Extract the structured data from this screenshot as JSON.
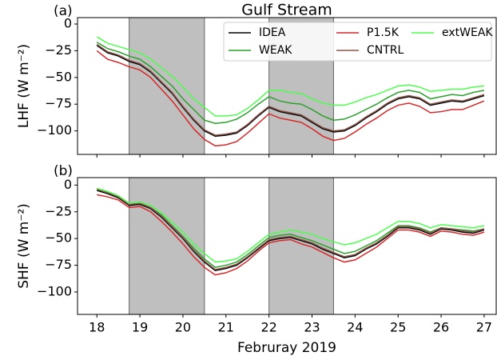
{
  "chart_data": [
    {
      "type": "line",
      "title": "Gulf Stream",
      "panel_label": "(a)",
      "ylabel": "LHF (W m⁻²)",
      "x": [
        18,
        18.25,
        18.5,
        18.75,
        19,
        19.25,
        19.5,
        19.75,
        20,
        20.25,
        20.5,
        20.75,
        21,
        21.25,
        21.5,
        21.75,
        22,
        22.25,
        22.5,
        22.75,
        23,
        23.25,
        23.5,
        23.75,
        24,
        24.25,
        24.5,
        24.75,
        25,
        25.25,
        25.5,
        25.75,
        26,
        26.25,
        26.5,
        26.75,
        27
      ],
      "xlim": [
        17.55,
        27.28
      ],
      "xticks": [
        18,
        19,
        20,
        21,
        22,
        23,
        24,
        25,
        26,
        27
      ],
      "ylim": [
        -122,
        6
      ],
      "yticks": [
        0,
        {
          "value": -25,
          "label": "−25"
        },
        {
          "value": -50,
          "label": "−50"
        },
        {
          "value": -75,
          "label": "−75"
        },
        {
          "value": -100,
          "label": "−100"
        }
      ],
      "shaded": [
        [
          18.75,
          20.5
        ],
        [
          22,
          23.5
        ]
      ],
      "legend": "upper right",
      "series": [
        {
          "name": "IDEA",
          "color": "#000000",
          "values": [
            -20,
            -27,
            -30,
            -35,
            -38,
            -45,
            -55,
            -65,
            -78,
            -90,
            -100,
            -105,
            -104,
            -102,
            -95,
            -86,
            -78,
            -82,
            -84,
            -86,
            -92,
            -98,
            -101,
            -100,
            -95,
            -88,
            -82,
            -75,
            -70,
            -68,
            -70,
            -76,
            -74,
            -72,
            -73,
            -70,
            -67
          ]
        },
        {
          "name": "WEAK",
          "color": "#2ca02c",
          "values": [
            -17,
            -23,
            -26,
            -30,
            -33,
            -40,
            -49,
            -58,
            -70,
            -80,
            -90,
            -93,
            -92,
            -89,
            -83,
            -75,
            -68,
            -72,
            -74,
            -75,
            -80,
            -86,
            -90,
            -89,
            -85,
            -80,
            -75,
            -69,
            -64,
            -62,
            -64,
            -70,
            -68,
            -66,
            -67,
            -64,
            -62
          ]
        },
        {
          "name": "P1.5K",
          "color": "#d62728",
          "values": [
            -25,
            -33,
            -36,
            -40,
            -43,
            -50,
            -61,
            -72,
            -85,
            -98,
            -108,
            -114,
            -113,
            -110,
            -102,
            -93,
            -84,
            -88,
            -90,
            -92,
            -98,
            -105,
            -109,
            -107,
            -101,
            -94,
            -88,
            -81,
            -76,
            -74,
            -77,
            -83,
            -82,
            -80,
            -80,
            -76,
            -72
          ]
        },
        {
          "name": "CNTRL",
          "color": "#8c564b",
          "values": [
            -19,
            -26,
            -29,
            -34,
            -37,
            -44,
            -54,
            -64,
            -77,
            -89,
            -99,
            -104,
            -103,
            -101,
            -94,
            -85,
            -77,
            -81,
            -83,
            -85,
            -91,
            -97,
            -100,
            -99,
            -94,
            -87,
            -81,
            -74,
            -69,
            -67,
            -69,
            -75,
            -73,
            -71,
            -72,
            -69,
            -66
          ]
        },
        {
          "name": "extWEAK",
          "color": "#4dff4d",
          "values": [
            -12,
            -18,
            -21,
            -24,
            -27,
            -33,
            -41,
            -49,
            -59,
            -70,
            -78,
            -86,
            -86,
            -85,
            -79,
            -71,
            -62,
            -62,
            -64,
            -65,
            -70,
            -74,
            -76,
            -76,
            -73,
            -69,
            -66,
            -62,
            -58,
            -57,
            -59,
            -63,
            -62,
            -61,
            -61,
            -59,
            -58
          ]
        }
      ]
    },
    {
      "type": "line",
      "panel_label": "(b)",
      "ylabel": "SHF (W m⁻²)",
      "xlabel": "Februray 2019",
      "x": [
        18,
        18.25,
        18.5,
        18.75,
        19,
        19.25,
        19.5,
        19.75,
        20,
        20.25,
        20.5,
        20.75,
        21,
        21.25,
        21.5,
        21.75,
        22,
        22.25,
        22.5,
        22.75,
        23,
        23.25,
        23.5,
        23.75,
        24,
        24.25,
        24.5,
        24.75,
        25,
        25.25,
        25.5,
        25.75,
        26,
        26.25,
        26.5,
        26.75,
        27
      ],
      "xlim": [
        17.55,
        27.28
      ],
      "xticks": [
        18,
        19,
        20,
        21,
        22,
        23,
        24,
        25,
        26,
        27
      ],
      "ylim": [
        -121,
        7
      ],
      "yticks": [
        0,
        {
          "value": -25,
          "label": "−25"
        },
        {
          "value": -50,
          "label": "−50"
        },
        {
          "value": -75,
          "label": "−75"
        },
        {
          "value": -100,
          "label": "−100"
        }
      ],
      "shaded": [
        [
          18.75,
          20.5
        ],
        [
          22,
          23.5
        ]
      ],
      "series": [
        {
          "name": "IDEA",
          "color": "#000000",
          "values": [
            -5,
            -8,
            -12,
            -19,
            -18,
            -22,
            -30,
            -40,
            -50,
            -62,
            -72,
            -80,
            -78,
            -75,
            -68,
            -60,
            -52,
            -50,
            -49,
            -52,
            -55,
            -60,
            -64,
            -68,
            -66,
            -60,
            -55,
            -48,
            -40,
            -40,
            -42,
            -46,
            -41,
            -42,
            -44,
            -45,
            -42
          ]
        },
        {
          "name": "WEAK",
          "color": "#2ca02c",
          "values": [
            -4,
            -7,
            -11,
            -18,
            -17,
            -21,
            -28,
            -38,
            -48,
            -59,
            -69,
            -77,
            -75,
            -72,
            -65,
            -57,
            -49,
            -47,
            -46,
            -49,
            -52,
            -56,
            -60,
            -64,
            -62,
            -57,
            -52,
            -45,
            -38,
            -38,
            -40,
            -44,
            -40,
            -41,
            -42,
            -43,
            -41
          ]
        },
        {
          "name": "P1.5K",
          "color": "#d62728",
          "values": [
            -9,
            -11,
            -14,
            -21,
            -20,
            -25,
            -34,
            -44,
            -55,
            -67,
            -77,
            -84,
            -82,
            -78,
            -71,
            -62,
            -54,
            -52,
            -51,
            -55,
            -58,
            -63,
            -68,
            -72,
            -70,
            -64,
            -58,
            -50,
            -42,
            -42,
            -44,
            -48,
            -43,
            -44,
            -46,
            -47,
            -44
          ]
        },
        {
          "name": "CNTRL",
          "color": "#8c564b",
          "values": [
            -4,
            -7,
            -11,
            -18,
            -17,
            -21,
            -29,
            -39,
            -49,
            -61,
            -71,
            -79,
            -77,
            -74,
            -67,
            -59,
            -51,
            -49,
            -48,
            -51,
            -54,
            -59,
            -63,
            -67,
            -65,
            -59,
            -54,
            -47,
            -39,
            -39,
            -41,
            -45,
            -40,
            -41,
            -43,
            -44,
            -41
          ]
        },
        {
          "name": "extWEAK",
          "color": "#4dff4d",
          "values": [
            -3,
            -6,
            -10,
            -17,
            -16,
            -19,
            -26,
            -35,
            -44,
            -55,
            -64,
            -72,
            -71,
            -69,
            -62,
            -54,
            -46,
            -44,
            -42,
            -44,
            -46,
            -50,
            -53,
            -56,
            -54,
            -50,
            -46,
            -40,
            -34,
            -34,
            -36,
            -40,
            -37,
            -38,
            -39,
            -40,
            -38
          ]
        }
      ]
    }
  ]
}
